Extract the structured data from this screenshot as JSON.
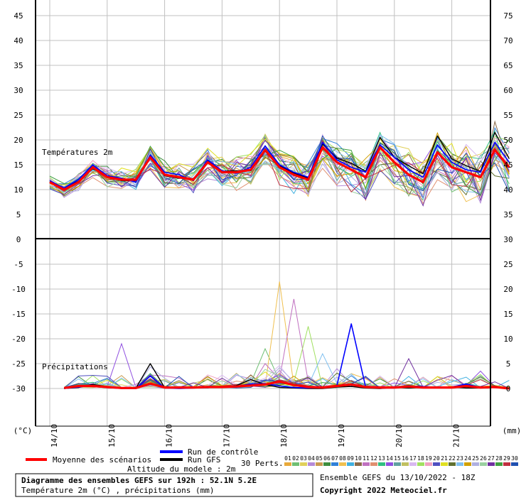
{
  "chart_data": {
    "type": "line",
    "left_unit": "(°C)",
    "right_unit": "(mm)",
    "dates": [
      "14/10",
      "15/10",
      "16/10",
      "17/10",
      "18/10",
      "19/10",
      "20/10",
      "21/10"
    ],
    "temp_panel": {
      "label": "Températures 2m",
      "y_ticks": [
        5,
        10,
        15,
        20,
        25,
        30,
        35,
        40,
        45
      ],
      "right_ticks": [
        35,
        40,
        45,
        50,
        55,
        60,
        65,
        70,
        75
      ],
      "ylim": [
        0,
        47.5
      ],
      "times": [
        0,
        0.25,
        0.5,
        0.75,
        1,
        1.25,
        1.5,
        1.75,
        2,
        2.25,
        2.5,
        2.75,
        3,
        3.25,
        3.5,
        3.75,
        4,
        4.25,
        4.5,
        4.75,
        5,
        5.25,
        5.5,
        5.75,
        6,
        6.25,
        6.5,
        6.75,
        7,
        7.25,
        7.5,
        7.75,
        8
      ],
      "mean": [
        11.5,
        10,
        11.5,
        14.5,
        12.5,
        12,
        12,
        16.5,
        13,
        12.5,
        12,
        15.5,
        13.5,
        13.5,
        14,
        18,
        14.5,
        13,
        12,
        18.5,
        15.5,
        14,
        12.5,
        18.5,
        15.5,
        13,
        11.5,
        17.5,
        14.5,
        13.5,
        12.5,
        18,
        14.5
      ],
      "control": [
        11.8,
        10.3,
        12,
        15,
        12.8,
        12.3,
        11.5,
        17,
        13.5,
        13,
        11.8,
        16,
        13.8,
        13.3,
        14.5,
        18.8,
        15,
        13.5,
        12.5,
        19.5,
        16,
        14.5,
        13.5,
        19,
        16.5,
        14,
        12.5,
        19,
        15.5,
        14,
        13.5,
        19.5,
        15.5
      ],
      "gfs": [
        11.5,
        10.3,
        11.7,
        14.2,
        12.7,
        11.8,
        11.8,
        16.8,
        12.8,
        12.3,
        12.2,
        15.7,
        13.7,
        13.8,
        13.8,
        17.7,
        14.8,
        13.3,
        12.3,
        19.2,
        16.3,
        15.3,
        13.7,
        20.5,
        16.5,
        14.8,
        13.2,
        20.8,
        16.2,
        14.8,
        13.7,
        21.5,
        16.2
      ]
    },
    "precip_panel": {
      "label": "Précipitations",
      "y_ticks": [
        -5,
        -10,
        -15,
        -20,
        -25,
        -30
      ],
      "right_ticks": [
        5,
        10,
        15,
        20,
        25,
        30
      ],
      "ylim": [
        0,
        30
      ],
      "times": [
        0.25,
        0.5,
        0.75,
        1,
        1.25,
        1.5,
        1.75,
        2,
        2.25,
        2.5,
        2.75,
        3,
        3.25,
        3.5,
        3.75,
        4,
        4.25,
        4.5,
        4.75,
        5,
        5.25,
        5.5,
        5.75,
        6,
        6.25,
        6.5,
        6.75,
        7,
        7.25,
        7.5,
        7.75,
        8
      ],
      "mean": [
        0.1,
        0.5,
        0.5,
        0.3,
        0.1,
        0.1,
        1,
        0.2,
        0.2,
        0.2,
        0.3,
        0.3,
        0.4,
        0.6,
        0.8,
        1.4,
        0.7,
        0.3,
        0.2,
        0.5,
        0.8,
        0.3,
        0.2,
        0.2,
        0.4,
        0.2,
        0.2,
        0.2,
        0.5,
        0.2,
        0.3,
        0
      ],
      "control": [
        0,
        0.3,
        0.6,
        0.2,
        0,
        0,
        2.5,
        0.1,
        0,
        0.1,
        0.2,
        0.4,
        0.4,
        0.9,
        1,
        0.5,
        0.2,
        0.1,
        0.2,
        0.6,
        13,
        0.3,
        0.1,
        0.1,
        0.5,
        0.4,
        0.2,
        0.3,
        0.9,
        0.2,
        0.4,
        0
      ],
      "gfs": [
        0,
        0.2,
        0.8,
        0.4,
        0,
        0.1,
        5,
        0.2,
        0.1,
        0.1,
        0.3,
        0.2,
        0.6,
        1.8,
        0.8,
        0.2,
        0.1,
        0,
        0,
        0.3,
        0.4,
        0.1,
        0,
        0.2,
        0.1,
        0.2,
        0.1,
        0.3,
        0.1,
        0.1,
        0.2,
        0
      ]
    },
    "legend": {
      "mean_label": "Moyenne des scénarios",
      "control_label": "Run de contrôle",
      "gfs_label": "Run GFS",
      "perts_label": "30 Perts.",
      "pert_numbers": [
        "01",
        "02",
        "03",
        "04",
        "05",
        "06",
        "07",
        "08",
        "09",
        "10",
        "11",
        "12",
        "13",
        "14",
        "15",
        "16",
        "17",
        "18",
        "19",
        "20",
        "21",
        "22",
        "23",
        "24",
        "25",
        "26",
        "27",
        "28",
        "29",
        "30"
      ]
    },
    "altitude_label": "Altitude du modele : 2m",
    "footer": {
      "title": "Diagramme des ensembles GEFS sur 192h : 52.1N 5.2E",
      "subtitle": "Température 2m (°C) , précipitations (mm)",
      "run_info": "Ensemble GEFS du 13/10/2022 - 18Z",
      "copyright": "Copyright 2022 Meteociel.fr"
    },
    "colors": {
      "mean": "#ff0000",
      "control": "#0000ff",
      "gfs": "#000000",
      "grid": "#c0c0c0",
      "perturbations": [
        "#e8a93a",
        "#6fbf73",
        "#e0d05a",
        "#b48ad8",
        "#c99a50",
        "#3f8f3f",
        "#2f80d8",
        "#f0c050",
        "#3fb0e0",
        "#8a6a4a",
        "#c070c0",
        "#e09070",
        "#30c080",
        "#9050e0",
        "#60a0a0",
        "#c0c060",
        "#d8b8f0",
        "#a0e060",
        "#f0a0c0",
        "#5050c0",
        "#e0e020",
        "#607030",
        "#80c0f0",
        "#d0a000",
        "#b0b0e0",
        "#9ad0a0",
        "#7030a0",
        "#40a040",
        "#c03040",
        "#2050b0"
      ]
    }
  }
}
